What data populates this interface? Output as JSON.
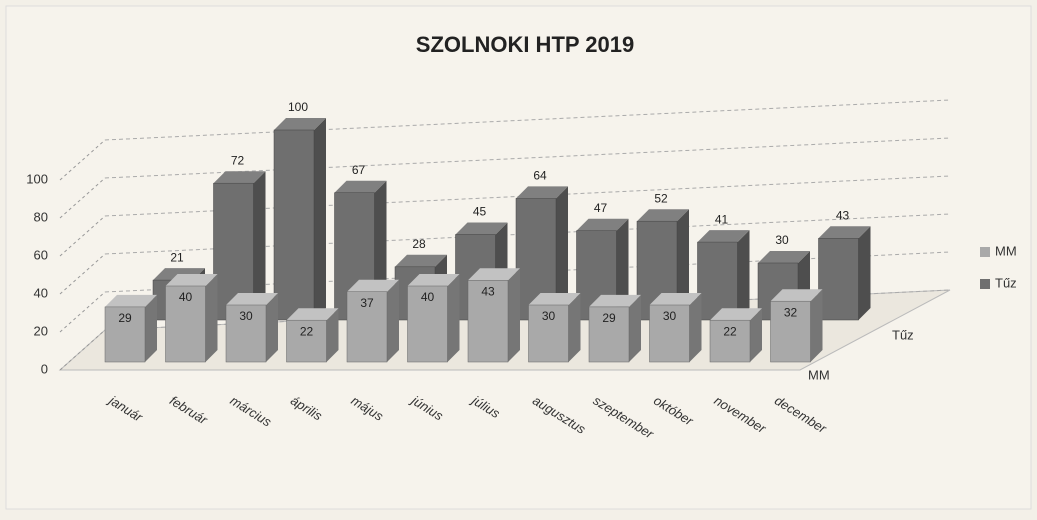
{
  "chart_data": {
    "type": "bar3d",
    "title": "SZOLNOKI HTP 2019",
    "categories": [
      "január",
      "február",
      "március",
      "április",
      "május",
      "június",
      "július",
      "augusztus",
      "szeptember",
      "október",
      "november",
      "december"
    ],
    "series": [
      {
        "name": "MM",
        "color": "#a9a9a9",
        "values": [
          29,
          40,
          30,
          22,
          37,
          40,
          43,
          30,
          29,
          30,
          22,
          32
        ]
      },
      {
        "name": "Tűz",
        "color": "#6f6f6f",
        "values": [
          21,
          72,
          100,
          67,
          28,
          45,
          64,
          47,
          52,
          41,
          30,
          43
        ]
      }
    ],
    "ylim": [
      0,
      100
    ],
    "yticks": [
      0,
      20,
      40,
      60,
      80,
      100
    ],
    "grid": true,
    "legend": "right"
  }
}
